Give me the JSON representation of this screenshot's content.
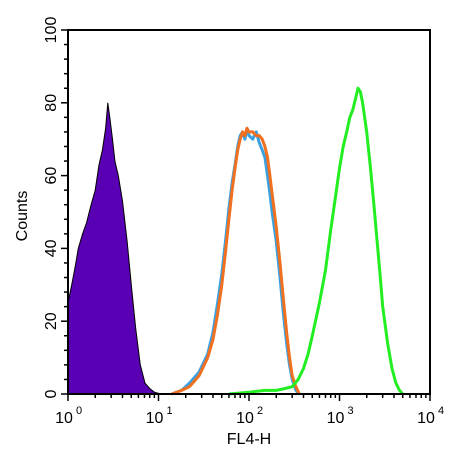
{
  "chart_data": {
    "type": "area",
    "title": "",
    "xlabel": "FL4-H",
    "ylabel": "Counts",
    "x_scale": "log",
    "xlim": [
      1,
      10000
    ],
    "ylim": [
      0,
      100
    ],
    "x_ticks": [
      {
        "base": "10",
        "exp": "0",
        "value": 1
      },
      {
        "base": "10",
        "exp": "1",
        "value": 10
      },
      {
        "base": "10",
        "exp": "2",
        "value": 100
      },
      {
        "base": "10",
        "exp": "3",
        "value": 1000
      },
      {
        "base": "10",
        "exp": "4",
        "value": 10000
      }
    ],
    "y_ticks": [
      "0",
      "20",
      "40",
      "60",
      "80",
      "100"
    ],
    "y_tick_values": [
      0,
      20,
      40,
      60,
      80,
      100
    ],
    "grid": false,
    "legend": "none",
    "series": [
      {
        "color": "#5a00b4",
        "filled": true,
        "x": [
          1,
          1.1,
          1.2,
          1.3,
          1.45,
          1.6,
          1.8,
          2.0,
          2.2,
          2.4,
          2.6,
          2.75,
          2.9,
          3.1,
          3.3,
          3.6,
          4.0,
          4.5,
          5.0,
          5.6,
          6.3,
          7.1,
          8.0,
          9.0,
          10.0,
          11.0
        ],
        "y": [
          25,
          30,
          35,
          40,
          44,
          47,
          52,
          56,
          63,
          67,
          73,
          80,
          76,
          70,
          64,
          60,
          53,
          42,
          30,
          18,
          8,
          3,
          1.5,
          0.5,
          0.2,
          0
        ]
      },
      {
        "color": "#3ba0e0",
        "filled": false,
        "x": [
          14,
          18,
          22,
          28,
          35,
          40,
          45,
          50,
          55,
          60,
          65,
          70,
          75,
          80,
          85,
          90,
          95,
          100,
          110,
          120,
          130,
          140,
          150,
          160,
          170,
          180,
          200,
          220,
          240,
          260,
          280,
          300,
          330,
          360
        ],
        "y": [
          0,
          1,
          3,
          6,
          11,
          17,
          25,
          33,
          42,
          51,
          58,
          63,
          68,
          71,
          72,
          70,
          73,
          71,
          70,
          72,
          69,
          67,
          65,
          60,
          55,
          50,
          42,
          32,
          22,
          14,
          8,
          4,
          1,
          0
        ]
      },
      {
        "color": "#f07020",
        "filled": false,
        "x": [
          14,
          18,
          22,
          28,
          35,
          40,
          45,
          50,
          55,
          60,
          65,
          70,
          75,
          80,
          85,
          90,
          95,
          100,
          110,
          120,
          130,
          140,
          150,
          160,
          170,
          180,
          200,
          220,
          240,
          260,
          280,
          300,
          330,
          360
        ],
        "y": [
          0,
          1,
          2,
          5,
          10,
          15,
          22,
          30,
          39,
          48,
          56,
          62,
          67,
          70,
          72,
          71,
          73,
          72,
          72,
          71,
          71,
          70,
          68,
          65,
          60,
          55,
          46,
          36,
          26,
          17,
          10,
          5,
          2,
          0
        ]
      },
      {
        "color": "#22ee22",
        "filled": false,
        "x": [
          60,
          100,
          150,
          200,
          250,
          300,
          350,
          400,
          450,
          500,
          600,
          700,
          800,
          900,
          1000,
          1100,
          1200,
          1300,
          1400,
          1500,
          1600,
          1700,
          1800,
          2000,
          2200,
          2400,
          2600,
          2800,
          3000,
          3400,
          3800,
          4200,
          4600,
          5000
        ],
        "y": [
          0,
          0.5,
          1,
          1,
          1.5,
          2,
          4,
          7,
          11,
          16,
          25,
          34,
          45,
          54,
          62,
          68,
          72,
          76,
          78,
          81,
          84,
          83,
          80,
          72,
          62,
          52,
          42,
          33,
          24,
          14,
          7,
          3,
          1,
          0
        ]
      }
    ]
  }
}
